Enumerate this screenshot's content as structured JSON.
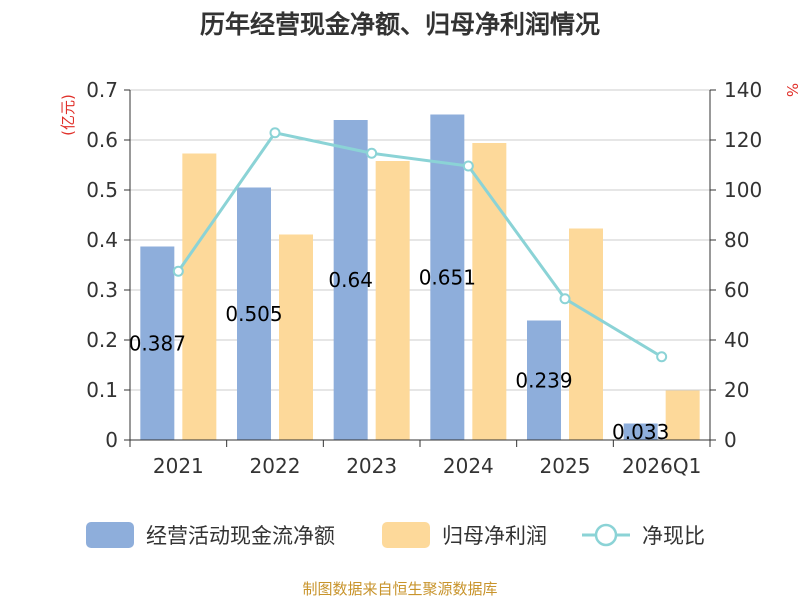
{
  "chart_data": {
    "type": "bar",
    "title": "历年经营现金净额、归母净利润情况",
    "categories": [
      "2021",
      "2022",
      "2023",
      "2024",
      "2025",
      "2026Q1"
    ],
    "left_axis": {
      "label": "(亿元)",
      "ylim": [
        0,
        0.7
      ],
      "ticks": [
        "0",
        "0.1",
        "0.2",
        "0.3",
        "0.4",
        "0.5",
        "0.6",
        "0.7"
      ]
    },
    "right_axis": {
      "label": "%",
      "ylim": [
        0,
        140
      ],
      "ticks": [
        "0",
        "20",
        "40",
        "60",
        "80",
        "100",
        "120",
        "140"
      ]
    },
    "series": [
      {
        "name": "经营活动现金流净额",
        "type": "bar",
        "axis": "left",
        "color": "#8eaedb",
        "values": [
          0.387,
          0.505,
          0.64,
          0.651,
          0.239,
          0.033
        ],
        "labels": [
          "0.387",
          "0.505",
          "0.64",
          "0.651",
          "0.239",
          "0.033"
        ]
      },
      {
        "name": "归母净利润",
        "type": "bar",
        "axis": "left",
        "color": "#fdd99a",
        "values": [
          0.573,
          0.411,
          0.558,
          0.594,
          0.423,
          0.099
        ]
      },
      {
        "name": "净现比",
        "type": "line",
        "axis": "right",
        "color": "#8bd3d6",
        "values": [
          67.5,
          122.9,
          114.7,
          109.6,
          56.5,
          33.3
        ]
      }
    ],
    "grid": true,
    "legend_position": "bottom",
    "source": "制图数据来自恒生聚源数据库"
  }
}
